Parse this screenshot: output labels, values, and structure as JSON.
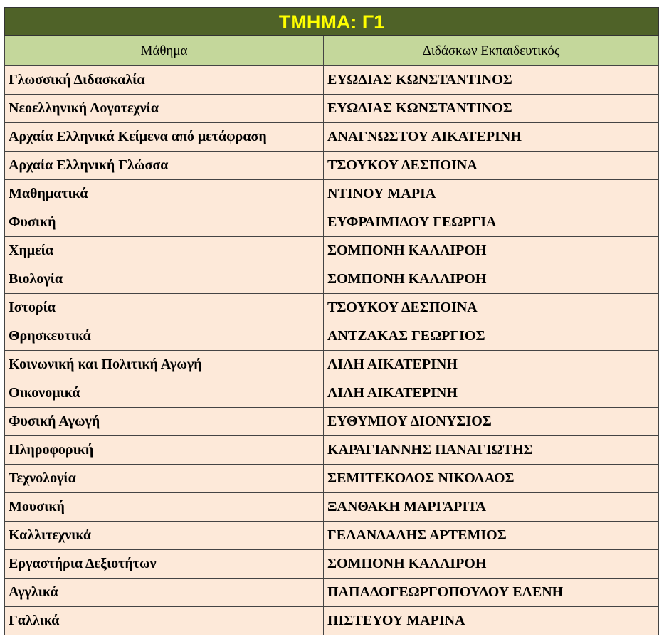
{
  "header": {
    "title": "ΤΜΗΜΑ: Γ1"
  },
  "table": {
    "columns": [
      "Μάθημα",
      "Διδάσκων Εκπαιδευτικός"
    ],
    "rows": [
      [
        "Γλωσσική Διδασκαλία",
        "ΕΥΩΔΙΑΣ ΚΩΝΣΤΑΝΤΙΝΟΣ"
      ],
      [
        "Νεοελληνική Λογοτεχνία",
        "ΕΥΩΔΙΑΣ ΚΩΝΣΤΑΝΤΙΝΟΣ"
      ],
      [
        "Αρχαία Ελληνικά Κείμενα από μετάφραση",
        "ΑΝΑΓΝΩΣΤΟΥ ΑΙΚΑΤΕΡΙΝΗ"
      ],
      [
        "Αρχαία Ελληνική Γλώσσα",
        "ΤΣΟΥΚΟΥ ΔΕΣΠΟΙΝΑ"
      ],
      [
        "Μαθηματικά",
        "ΝΤΙΝΟΥ ΜΑΡΙΑ"
      ],
      [
        "Φυσική",
        "ΕΥΦΡΑΙΜΙΔΟΥ ΓΕΩΡΓΙΑ"
      ],
      [
        "Χημεία",
        "ΣΟΜΠΟΝΗ ΚΑΛΛΙΡΟΗ"
      ],
      [
        "Βιολογία",
        "ΣΟΜΠΟΝΗ ΚΑΛΛΙΡΟΗ"
      ],
      [
        "Ιστορία",
        "ΤΣΟΥΚΟΥ ΔΕΣΠΟΙΝΑ"
      ],
      [
        "Θρησκευτικά",
        "ΑΝΤΖΑΚΑΣ ΓΕΩΡΓΙΟΣ"
      ],
      [
        "Κοινωνική και Πολιτική Αγωγή",
        "ΛΙΛΗ ΑΙΚΑΤΕΡΙΝΗ"
      ],
      [
        "Οικονομικά",
        "ΛΙΛΗ ΑΙΚΑΤΕΡΙΝΗ"
      ],
      [
        "Φυσική Αγωγή",
        "ΕΥΘΥΜΙΟΥ ΔΙΟΝΥΣΙΟΣ"
      ],
      [
        "Πληροφορική",
        "ΚΑΡΑΓΙΑΝΝΗΣ ΠΑΝΑΓΙΩΤΗΣ"
      ],
      [
        "Τεχνολογία",
        "ΣΕΜΙΤΕΚΟΛΟΣ ΝΙΚΟΛΑΟΣ"
      ],
      [
        "Μουσική",
        "ΞΑΝΘΑΚΗ ΜΑΡΓΑΡΙΤΑ"
      ],
      [
        "Καλλιτεχνικά",
        "ΓΕΛΑΝΔΑΛΗΣ ΑΡΤΕΜΙΟΣ"
      ],
      [
        "Εργαστήρια Δεξιοτήτων",
        "ΣΟΜΠΟΝΗ ΚΑΛΛΙΡΟΗ"
      ],
      [
        "Αγγλικά",
        "ΠΑΠΑΔΟΓΕΩΡΓΟΠΟΥΛΟΥ ΕΛΕΝΗ"
      ],
      [
        "Γαλλικά",
        "ΠΙΣΤΕΥΟΥ ΜΑΡΙΝΑ"
      ]
    ]
  }
}
